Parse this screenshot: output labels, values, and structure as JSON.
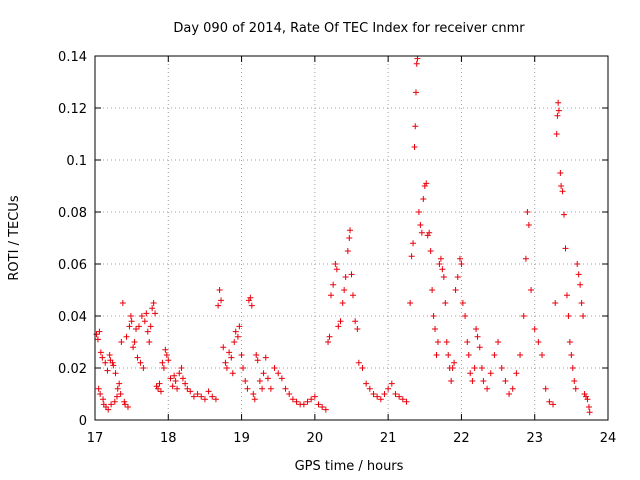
{
  "chart_data": {
    "type": "scatter",
    "title": "Day 090 of 2014, Rate Of TEC Index for receiver cnmr",
    "xlabel": "GPS time / hours",
    "ylabel": "ROTI / TECUs",
    "xlim": [
      17,
      24
    ],
    "ylim": [
      0,
      0.14
    ],
    "x_ticks": [
      "17",
      "18",
      "19",
      "20",
      "21",
      "22",
      "23",
      "24"
    ],
    "y_ticks": [
      "0",
      "0.02",
      "0.04",
      "0.06",
      "0.08",
      "0.1",
      "0.12",
      "0.14"
    ],
    "grid": true,
    "marker": "+",
    "marker_color": "#e8000b",
    "series": [
      {
        "name": "ROTI",
        "points": [
          [
            17.02,
            0.033
          ],
          [
            17.04,
            0.031
          ],
          [
            17.06,
            0.034
          ],
          [
            17.05,
            0.012
          ],
          [
            17.07,
            0.01
          ],
          [
            17.08,
            0.026
          ],
          [
            17.1,
            0.024
          ],
          [
            17.11,
            0.008
          ],
          [
            17.12,
            0.006
          ],
          [
            17.14,
            0.022
          ],
          [
            17.15,
            0.005
          ],
          [
            17.17,
            0.019
          ],
          [
            17.18,
            0.004
          ],
          [
            17.2,
            0.025
          ],
          [
            17.21,
            0.023
          ],
          [
            17.22,
            0.006
          ],
          [
            17.24,
            0.022
          ],
          [
            17.25,
            0.021
          ],
          [
            17.27,
            0.007
          ],
          [
            17.28,
            0.018
          ],
          [
            17.3,
            0.009
          ],
          [
            17.31,
            0.012
          ],
          [
            17.33,
            0.014
          ],
          [
            17.35,
            0.01
          ],
          [
            17.36,
            0.03
          ],
          [
            17.38,
            0.045
          ],
          [
            17.4,
            0.007
          ],
          [
            17.41,
            0.006
          ],
          [
            17.43,
            0.032
          ],
          [
            17.45,
            0.005
          ],
          [
            17.47,
            0.036
          ],
          [
            17.49,
            0.04
          ],
          [
            17.5,
            0.038
          ],
          [
            17.52,
            0.028
          ],
          [
            17.54,
            0.03
          ],
          [
            17.56,
            0.035
          ],
          [
            17.58,
            0.024
          ],
          [
            17.6,
            0.036
          ],
          [
            17.62,
            0.022
          ],
          [
            17.64,
            0.04
          ],
          [
            17.66,
            0.02
          ],
          [
            17.68,
            0.038
          ],
          [
            17.7,
            0.041
          ],
          [
            17.72,
            0.034
          ],
          [
            17.74,
            0.03
          ],
          [
            17.76,
            0.036
          ],
          [
            17.78,
            0.043
          ],
          [
            17.8,
            0.045
          ],
          [
            17.82,
            0.041
          ],
          [
            17.84,
            0.013
          ],
          [
            17.86,
            0.012
          ],
          [
            17.88,
            0.014
          ],
          [
            17.9,
            0.011
          ],
          [
            17.92,
            0.022
          ],
          [
            17.94,
            0.02
          ],
          [
            17.96,
            0.027
          ],
          [
            17.98,
            0.025
          ],
          [
            18.0,
            0.023
          ],
          [
            18.03,
            0.016
          ],
          [
            18.06,
            0.013
          ],
          [
            18.08,
            0.017
          ],
          [
            18.1,
            0.015
          ],
          [
            18.12,
            0.012
          ],
          [
            18.15,
            0.018
          ],
          [
            18.18,
            0.02
          ],
          [
            18.2,
            0.016
          ],
          [
            18.23,
            0.014
          ],
          [
            18.26,
            0.012
          ],
          [
            18.3,
            0.011
          ],
          [
            18.35,
            0.009
          ],
          [
            18.4,
            0.01
          ],
          [
            18.45,
            0.009
          ],
          [
            18.5,
            0.008
          ],
          [
            18.55,
            0.011
          ],
          [
            18.6,
            0.009
          ],
          [
            18.65,
            0.008
          ],
          [
            18.68,
            0.044
          ],
          [
            18.7,
            0.05
          ],
          [
            18.72,
            0.046
          ],
          [
            18.75,
            0.028
          ],
          [
            18.78,
            0.022
          ],
          [
            18.8,
            0.02
          ],
          [
            18.83,
            0.026
          ],
          [
            18.86,
            0.024
          ],
          [
            18.88,
            0.018
          ],
          [
            18.9,
            0.03
          ],
          [
            18.92,
            0.034
          ],
          [
            18.95,
            0.032
          ],
          [
            18.97,
            0.036
          ],
          [
            19.0,
            0.025
          ],
          [
            19.02,
            0.02
          ],
          [
            19.05,
            0.015
          ],
          [
            19.08,
            0.012
          ],
          [
            19.1,
            0.046
          ],
          [
            19.12,
            0.047
          ],
          [
            19.14,
            0.044
          ],
          [
            19.16,
            0.01
          ],
          [
            19.18,
            0.008
          ],
          [
            19.2,
            0.025
          ],
          [
            19.22,
            0.023
          ],
          [
            19.25,
            0.015
          ],
          [
            19.28,
            0.012
          ],
          [
            19.3,
            0.018
          ],
          [
            19.33,
            0.024
          ],
          [
            19.36,
            0.016
          ],
          [
            19.4,
            0.012
          ],
          [
            19.45,
            0.02
          ],
          [
            19.5,
            0.018
          ],
          [
            19.55,
            0.016
          ],
          [
            19.6,
            0.012
          ],
          [
            19.65,
            0.01
          ],
          [
            19.7,
            0.008
          ],
          [
            19.75,
            0.007
          ],
          [
            19.8,
            0.006
          ],
          [
            19.85,
            0.006
          ],
          [
            19.9,
            0.007
          ],
          [
            19.95,
            0.008
          ],
          [
            20.0,
            0.009
          ],
          [
            20.05,
            0.006
          ],
          [
            20.1,
            0.005
          ],
          [
            20.15,
            0.004
          ],
          [
            20.18,
            0.03
          ],
          [
            20.2,
            0.032
          ],
          [
            20.22,
            0.048
          ],
          [
            20.25,
            0.052
          ],
          [
            20.28,
            0.06
          ],
          [
            20.3,
            0.058
          ],
          [
            20.32,
            0.036
          ],
          [
            20.35,
            0.038
          ],
          [
            20.38,
            0.045
          ],
          [
            20.4,
            0.05
          ],
          [
            20.42,
            0.055
          ],
          [
            20.45,
            0.065
          ],
          [
            20.47,
            0.07
          ],
          [
            20.48,
            0.073
          ],
          [
            20.5,
            0.056
          ],
          [
            20.52,
            0.048
          ],
          [
            20.55,
            0.038
          ],
          [
            20.58,
            0.035
          ],
          [
            20.6,
            0.022
          ],
          [
            20.65,
            0.02
          ],
          [
            20.7,
            0.014
          ],
          [
            20.75,
            0.012
          ],
          [
            20.8,
            0.01
          ],
          [
            20.85,
            0.009
          ],
          [
            20.9,
            0.008
          ],
          [
            20.95,
            0.01
          ],
          [
            21.0,
            0.012
          ],
          [
            21.05,
            0.014
          ],
          [
            21.1,
            0.01
          ],
          [
            21.15,
            0.009
          ],
          [
            21.2,
            0.008
          ],
          [
            21.25,
            0.007
          ],
          [
            21.3,
            0.045
          ],
          [
            21.32,
            0.063
          ],
          [
            21.34,
            0.068
          ],
          [
            21.36,
            0.105
          ],
          [
            21.37,
            0.113
          ],
          [
            21.38,
            0.126
          ],
          [
            21.39,
            0.137
          ],
          [
            21.4,
            0.139
          ],
          [
            21.42,
            0.08
          ],
          [
            21.44,
            0.075
          ],
          [
            21.46,
            0.072
          ],
          [
            21.48,
            0.085
          ],
          [
            21.5,
            0.09
          ],
          [
            21.52,
            0.091
          ],
          [
            21.54,
            0.071
          ],
          [
            21.56,
            0.072
          ],
          [
            21.58,
            0.065
          ],
          [
            21.6,
            0.05
          ],
          [
            21.62,
            0.04
          ],
          [
            21.64,
            0.035
          ],
          [
            21.66,
            0.025
          ],
          [
            21.68,
            0.03
          ],
          [
            21.7,
            0.06
          ],
          [
            21.72,
            0.062
          ],
          [
            21.74,
            0.058
          ],
          [
            21.76,
            0.055
          ],
          [
            21.78,
            0.045
          ],
          [
            21.8,
            0.03
          ],
          [
            21.82,
            0.025
          ],
          [
            21.84,
            0.02
          ],
          [
            21.86,
            0.015
          ],
          [
            21.88,
            0.02
          ],
          [
            21.9,
            0.022
          ],
          [
            21.92,
            0.05
          ],
          [
            21.95,
            0.055
          ],
          [
            21.98,
            0.062
          ],
          [
            22.0,
            0.06
          ],
          [
            22.02,
            0.045
          ],
          [
            22.05,
            0.04
          ],
          [
            22.08,
            0.03
          ],
          [
            22.1,
            0.025
          ],
          [
            22.12,
            0.018
          ],
          [
            22.15,
            0.015
          ],
          [
            22.18,
            0.02
          ],
          [
            22.2,
            0.035
          ],
          [
            22.22,
            0.032
          ],
          [
            22.25,
            0.028
          ],
          [
            22.28,
            0.02
          ],
          [
            22.3,
            0.015
          ],
          [
            22.35,
            0.012
          ],
          [
            22.4,
            0.018
          ],
          [
            22.45,
            0.025
          ],
          [
            22.5,
            0.03
          ],
          [
            22.55,
            0.02
          ],
          [
            22.6,
            0.015
          ],
          [
            22.65,
            0.01
          ],
          [
            22.7,
            0.012
          ],
          [
            22.75,
            0.018
          ],
          [
            22.8,
            0.025
          ],
          [
            22.85,
            0.04
          ],
          [
            22.88,
            0.062
          ],
          [
            22.9,
            0.08
          ],
          [
            22.92,
            0.075
          ],
          [
            22.95,
            0.05
          ],
          [
            23.0,
            0.035
          ],
          [
            23.05,
            0.03
          ],
          [
            23.1,
            0.025
          ],
          [
            23.15,
            0.012
          ],
          [
            23.2,
            0.007
          ],
          [
            23.25,
            0.006
          ],
          [
            23.28,
            0.045
          ],
          [
            23.3,
            0.11
          ],
          [
            23.31,
            0.117
          ],
          [
            23.32,
            0.122
          ],
          [
            23.33,
            0.119
          ],
          [
            23.35,
            0.095
          ],
          [
            23.36,
            0.09
          ],
          [
            23.38,
            0.088
          ],
          [
            23.4,
            0.079
          ],
          [
            23.42,
            0.066
          ],
          [
            23.44,
            0.048
          ],
          [
            23.46,
            0.04
          ],
          [
            23.48,
            0.03
          ],
          [
            23.5,
            0.025
          ],
          [
            23.52,
            0.02
          ],
          [
            23.54,
            0.015
          ],
          [
            23.56,
            0.012
          ],
          [
            23.58,
            0.06
          ],
          [
            23.6,
            0.056
          ],
          [
            23.62,
            0.052
          ],
          [
            23.64,
            0.045
          ],
          [
            23.66,
            0.04
          ],
          [
            23.68,
            0.01
          ],
          [
            23.7,
            0.009
          ],
          [
            23.72,
            0.008
          ],
          [
            23.74,
            0.005
          ],
          [
            23.75,
            0.003
          ]
        ]
      }
    ]
  }
}
